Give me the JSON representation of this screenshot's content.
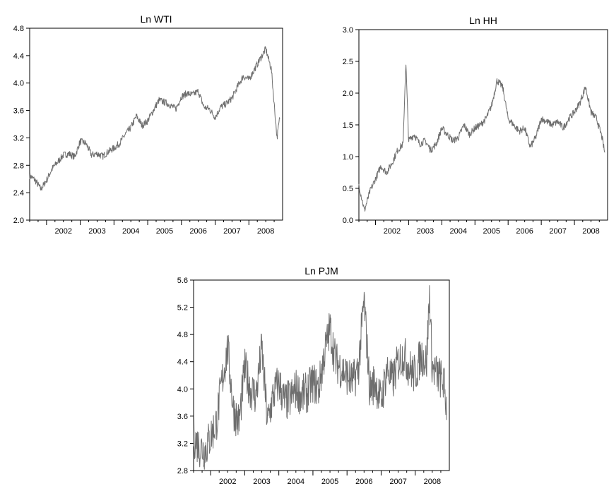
{
  "chart_data": [
    {
      "type": "line",
      "title": "Ln WTI",
      "xlabel": "",
      "ylabel": "",
      "x_range": [
        "2001-07",
        "2008-12"
      ],
      "ylim": [
        2.0,
        4.8
      ],
      "y_ticks": [
        "2.0",
        "2.4",
        "2.8",
        "3.2",
        "3.6",
        "4.0",
        "4.4",
        "4.8"
      ],
      "x_tick_labels": [
        "2002",
        "2003",
        "2004",
        "2005",
        "2006",
        "2007",
        "2008"
      ],
      "grid": false,
      "line_color": "#6e6e6e",
      "series": [
        {
          "x": [
            "2001-07",
            "2001-09",
            "2001-11",
            "2002-01",
            "2002-03",
            "2002-05",
            "2002-07",
            "2002-09",
            "2002-11",
            "2003-01",
            "2003-03",
            "2003-05",
            "2003-07",
            "2003-09",
            "2003-11",
            "2004-01",
            "2004-03",
            "2004-05",
            "2004-07",
            "2004-09",
            "2004-11",
            "2005-01",
            "2005-03",
            "2005-05",
            "2005-07",
            "2005-09",
            "2005-11",
            "2006-01",
            "2006-03",
            "2006-05",
            "2006-07",
            "2006-09",
            "2006-11",
            "2007-01",
            "2007-03",
            "2007-05",
            "2007-07",
            "2007-09",
            "2007-11",
            "2008-01",
            "2008-03",
            "2008-05",
            "2008-07",
            "2008-09",
            "2008-10",
            "2008-11",
            "2008-12"
          ],
          "values": [
            2.65,
            2.58,
            2.45,
            2.58,
            2.75,
            2.85,
            2.95,
            2.97,
            2.92,
            3.15,
            3.12,
            2.95,
            2.97,
            2.93,
            3.0,
            3.05,
            3.12,
            3.25,
            3.35,
            3.52,
            3.38,
            3.45,
            3.6,
            3.75,
            3.72,
            3.68,
            3.62,
            3.8,
            3.85,
            3.83,
            3.88,
            3.65,
            3.62,
            3.5,
            3.65,
            3.7,
            3.78,
            3.95,
            4.1,
            4.05,
            4.2,
            4.35,
            4.5,
            4.2,
            3.7,
            3.2,
            3.5
          ]
        }
      ]
    },
    {
      "type": "line",
      "title": "Ln HH",
      "xlabel": "",
      "ylabel": "",
      "x_range": [
        "2001-07",
        "2008-12"
      ],
      "ylim": [
        0.0,
        3.0
      ],
      "y_ticks": [
        "0.0",
        "0.5",
        "1.0",
        "1.5",
        "2.0",
        "2.5",
        "3.0"
      ],
      "x_tick_labels": [
        "2002",
        "2003",
        "2004",
        "2005",
        "2006",
        "2007",
        "2008"
      ],
      "grid": false,
      "line_color": "#6e6e6e",
      "series": [
        {
          "x": [
            "2001-07",
            "2001-09",
            "2001-11",
            "2002-01",
            "2002-03",
            "2002-05",
            "2002-07",
            "2002-09",
            "2002-11",
            "2002-12",
            "2003-01",
            "2003-03",
            "2003-05",
            "2003-07",
            "2003-09",
            "2003-11",
            "2004-01",
            "2004-03",
            "2004-05",
            "2004-07",
            "2004-09",
            "2004-11",
            "2005-01",
            "2005-03",
            "2005-05",
            "2005-07",
            "2005-09",
            "2005-11",
            "2006-01",
            "2006-03",
            "2006-05",
            "2006-07",
            "2006-09",
            "2006-11",
            "2007-01",
            "2007-03",
            "2007-05",
            "2007-07",
            "2007-09",
            "2007-11",
            "2008-01",
            "2008-03",
            "2008-05",
            "2008-07",
            "2008-09",
            "2008-11",
            "2008-12"
          ],
          "values": [
            0.55,
            0.15,
            0.45,
            0.65,
            0.85,
            0.75,
            0.9,
            1.1,
            1.2,
            2.5,
            1.25,
            1.35,
            1.2,
            1.25,
            1.1,
            1.2,
            1.45,
            1.35,
            1.25,
            1.3,
            1.5,
            1.35,
            1.45,
            1.5,
            1.6,
            1.8,
            2.2,
            2.1,
            1.6,
            1.5,
            1.4,
            1.45,
            1.15,
            1.3,
            1.6,
            1.55,
            1.5,
            1.55,
            1.45,
            1.6,
            1.7,
            1.85,
            2.1,
            1.7,
            1.6,
            1.3,
            1.05
          ]
        }
      ]
    },
    {
      "type": "line",
      "title": "Ln PJM",
      "xlabel": "",
      "ylabel": "",
      "x_range": [
        "2001-07",
        "2008-12"
      ],
      "ylim": [
        2.8,
        5.6
      ],
      "y_ticks": [
        "2.8",
        "3.2",
        "3.6",
        "4.0",
        "4.4",
        "4.8",
        "5.2",
        "5.6"
      ],
      "x_tick_labels": [
        "2002",
        "2003",
        "2004",
        "2005",
        "2006",
        "2007",
        "2008"
      ],
      "grid": false,
      "line_color": "#6e6e6e",
      "series": [
        {
          "x": [
            "2001-07",
            "2001-09",
            "2001-11",
            "2002-01",
            "2002-03",
            "2002-05",
            "2002-07",
            "2002-09",
            "2002-11",
            "2003-01",
            "2003-03",
            "2003-05",
            "2003-07",
            "2003-09",
            "2003-11",
            "2004-01",
            "2004-03",
            "2004-05",
            "2004-07",
            "2004-09",
            "2004-11",
            "2005-01",
            "2005-03",
            "2005-05",
            "2005-07",
            "2005-09",
            "2005-11",
            "2006-01",
            "2006-03",
            "2006-05",
            "2006-07",
            "2006-09",
            "2006-11",
            "2007-01",
            "2007-03",
            "2007-05",
            "2007-07",
            "2007-09",
            "2007-11",
            "2008-01",
            "2008-03",
            "2008-05",
            "2008-06",
            "2008-07",
            "2008-09",
            "2008-11",
            "2008-12"
          ],
          "values": [
            3.3,
            3.15,
            3.1,
            3.3,
            3.5,
            4.1,
            4.6,
            3.7,
            3.5,
            4.3,
            4.0,
            3.9,
            4.6,
            3.5,
            3.9,
            4.1,
            3.8,
            3.85,
            4.0,
            3.9,
            3.95,
            4.1,
            4.0,
            4.5,
            4.9,
            4.4,
            4.3,
            4.2,
            4.1,
            4.3,
            5.3,
            4.0,
            4.1,
            3.8,
            4.3,
            4.1,
            4.4,
            4.5,
            4.3,
            4.2,
            4.5,
            4.4,
            5.4,
            4.3,
            4.2,
            4.1,
            3.75
          ]
        }
      ]
    }
  ]
}
